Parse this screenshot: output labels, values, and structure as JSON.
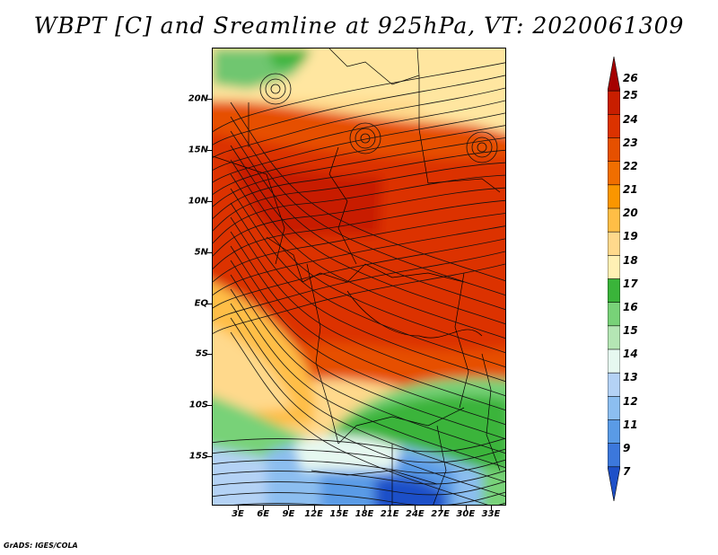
{
  "title": "WBPT [C] and Sreamline at 925hPa, VT: 2020061309",
  "footer": "GrADS: IGES/COLA",
  "map": {
    "lat_labels": [
      "20N",
      "15N",
      "10N",
      "5N",
      "EQ",
      "5S",
      "10S",
      "15S"
    ],
    "lon_labels": [
      "3E",
      "6E",
      "9E",
      "12E",
      "15E",
      "18E",
      "21E",
      "24E",
      "27E",
      "30E",
      "33E"
    ],
    "lat_range": [
      -20,
      24.5
    ],
    "lon_range": [
      0.5,
      35
    ]
  },
  "colorbar": {
    "labels": [
      "26",
      "25",
      "24",
      "23",
      "22",
      "21",
      "20",
      "19",
      "18",
      "17",
      "16",
      "15",
      "14",
      "13",
      "12",
      "11",
      "9",
      "7"
    ],
    "colors": [
      "#a50000",
      "#c81e00",
      "#dc3200",
      "#e65000",
      "#f06e00",
      "#fa9600",
      "#ffbe46",
      "#ffd98c",
      "#fff0b4",
      "#3ab43a",
      "#78d278",
      "#b4e6b4",
      "#e6f8f0",
      "#b4d2f5",
      "#8cbef0",
      "#5a9be6",
      "#3c78dc",
      "#1e50c8"
    ]
  }
}
